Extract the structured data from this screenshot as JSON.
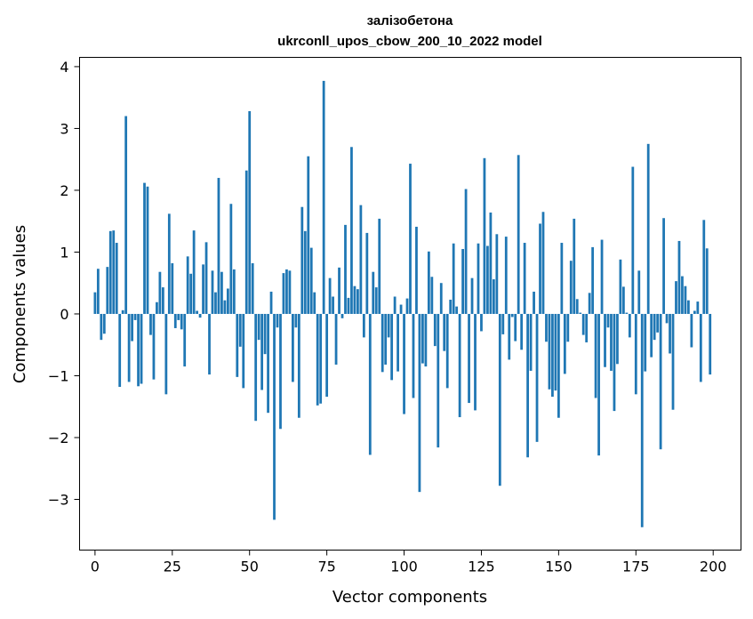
{
  "chart_data": {
    "type": "bar",
    "title_line1": "залізобетона",
    "title_line2": "ukrconll_upos_cbow_200_10_2022 model",
    "xlabel": "Vector components",
    "ylabel": "Components values",
    "xlim": [
      -5,
      209
    ],
    "ylim": [
      -3.82,
      4.15
    ],
    "xticks": [
      0,
      25,
      50,
      75,
      100,
      125,
      150,
      175,
      200
    ],
    "yticks": [
      -3,
      -2,
      -1,
      0,
      1,
      2,
      3,
      4
    ],
    "ytick_labels": [
      "−3",
      "−2",
      "−1",
      "0",
      "1",
      "2",
      "3",
      "4"
    ],
    "color": "#1f77b4",
    "values": [
      0.35,
      0.73,
      -0.42,
      -0.32,
      0.76,
      1.34,
      1.35,
      1.15,
      -1.18,
      0.06,
      3.2,
      -1.1,
      -0.44,
      -0.1,
      -1.17,
      -1.13,
      2.12,
      2.06,
      -0.34,
      -1.06,
      0.19,
      0.68,
      0.43,
      -1.3,
      1.62,
      0.82,
      -0.23,
      -0.1,
      -0.25,
      -0.85,
      0.93,
      0.65,
      1.35,
      0.05,
      -0.06,
      0.8,
      1.16,
      -0.98,
      0.7,
      0.35,
      2.2,
      0.68,
      0.22,
      0.41,
      1.78,
      0.72,
      -1.02,
      -0.53,
      -1.2,
      2.32,
      3.28,
      0.82,
      -1.73,
      -0.42,
      -1.23,
      -0.65,
      -1.6,
      0.36,
      -3.33,
      -0.22,
      -1.86,
      0.66,
      0.72,
      0.7,
      -1.1,
      -0.22,
      -1.68,
      1.73,
      1.34,
      2.55,
      1.07,
      0.35,
      -1.48,
      -1.45,
      3.77,
      -1.34,
      0.58,
      0.28,
      -0.82,
      0.75,
      -0.07,
      1.44,
      0.26,
      2.7,
      0.45,
      0.4,
      1.76,
      -0.38,
      1.31,
      -2.28,
      0.68,
      0.43,
      1.54,
      -0.94,
      -0.82,
      -0.38,
      -1.07,
      0.28,
      -0.93,
      0.15,
      -1.62,
      0.25,
      2.43,
      -1.36,
      1.41,
      -2.88,
      -0.8,
      -0.85,
      1.01,
      0.6,
      -0.52,
      -2.16,
      0.5,
      -0.6,
      -1.2,
      0.23,
      1.14,
      0.12,
      -1.67,
      1.05,
      2.02,
      -1.44,
      0.58,
      -1.56,
      1.14,
      -0.28,
      2.52,
      1.1,
      1.64,
      0.56,
      1.29,
      -2.78,
      -0.33,
      1.25,
      -0.74,
      -0.05,
      -0.44,
      2.57,
      -0.58,
      1.15,
      -2.32,
      -0.92,
      0.36,
      -2.07,
      1.46,
      1.65,
      -0.45,
      -1.22,
      -1.34,
      -1.24,
      -1.68,
      1.15,
      -0.97,
      -0.45,
      0.86,
      1.54,
      0.24,
      0.02,
      -0.34,
      -0.46,
      0.34,
      1.08,
      -1.36,
      -2.29,
      1.2,
      -0.86,
      -0.22,
      -0.92,
      -1.57,
      -0.81,
      0.88,
      0.44,
      0.02,
      -0.38,
      2.38,
      -1.3,
      0.7,
      -3.45,
      -0.93,
      2.75,
      -0.7,
      -0.42,
      -0.3,
      -2.19,
      1.55,
      -0.15,
      -0.64,
      -1.55,
      0.53,
      1.18,
      0.61,
      0.45,
      0.22,
      -0.54,
      0.05,
      0.2,
      -1.1,
      1.52,
      1.06,
      -0.98
    ]
  }
}
